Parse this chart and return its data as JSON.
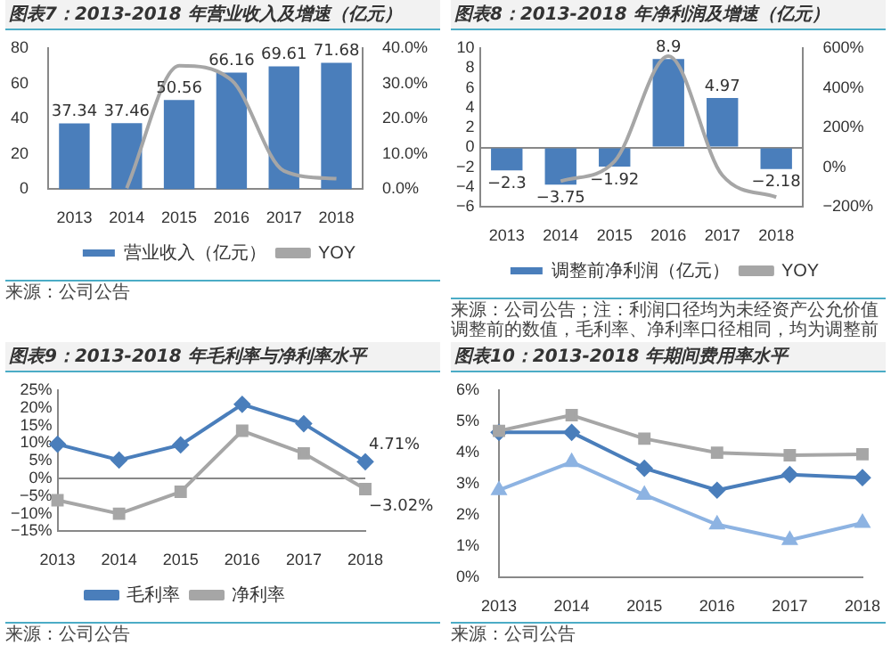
{
  "chart_data": [
    {
      "type": "bar",
      "title": "图表7：2013-2018 年营业收入及增速（亿元）",
      "annotations": [
        "来源：公司公告"
      ],
      "categories": [
        "2013",
        "2014",
        "2015",
        "2016",
        "2017",
        "2018"
      ],
      "legend": "bottom",
      "ylim": [
        0,
        80
      ],
      "yticks": [
        0,
        20,
        40,
        60,
        80
      ],
      "y2lim": [
        0,
        40
      ],
      "y2ticks": [
        {
          "value": 0,
          "label": "0.0%"
        },
        {
          "value": 10,
          "label": "10.0%"
        },
        {
          "value": 20,
          "label": "20.0%"
        },
        {
          "value": 30,
          "label": "30.0%"
        },
        {
          "value": 40,
          "label": "40.0%"
        }
      ],
      "series": [
        {
          "name": "营业收入（亿元）",
          "color": "#4a7ebb",
          "values": [
            37.34,
            37.46,
            50.56,
            66.16,
            69.61,
            71.68
          ],
          "value_labels": [
            "37.34",
            "37.46",
            "50.56",
            "66.16",
            "69.61",
            "71.68"
          ]
        },
        {
          "name": "YOY",
          "type": "line",
          "axis": "y2",
          "color": "#a6a6a6",
          "values": [
            null,
            0.3,
            35,
            30.9,
            5.2,
            3
          ]
        }
      ]
    },
    {
      "type": "bar",
      "title": "图表8：2013-2018 年净利润及增速（亿元）",
      "annotations": [
        "来源：公司公告；注：利润口径均为未经资产公允价值调整前的数值，毛利率、净利率口径相同，均为调整前"
      ],
      "categories": [
        "2013",
        "2014",
        "2015",
        "2016",
        "2017",
        "2018"
      ],
      "legend": "bottom",
      "ylim": [
        -6,
        10
      ],
      "yticks": [
        {
          "value": -6,
          "label": "−6"
        },
        {
          "value": -4,
          "label": "−4"
        },
        {
          "value": -2,
          "label": "−2"
        },
        0,
        2,
        4,
        6,
        8,
        10
      ],
      "y2lim": [
        -200,
        600
      ],
      "y2ticks": [
        {
          "value": -200,
          "label": "−200%"
        },
        {
          "value": 0,
          "label": "0%"
        },
        {
          "value": 200,
          "label": "200%"
        },
        {
          "value": 400,
          "label": "400%"
        },
        {
          "value": 600,
          "label": "600%"
        }
      ],
      "series": [
        {
          "name": "调整前净利润（亿元）",
          "color": "#4a7ebb",
          "values": [
            -2.3,
            -3.75,
            -1.92,
            8.9,
            4.97,
            -2.18
          ],
          "value_labels": [
            "−2.3",
            "−3.75",
            "−1.92",
            "8.9",
            "4.97",
            "−2.18"
          ]
        },
        {
          "name": "YOY",
          "type": "line",
          "axis": "y2",
          "color": "#a6a6a6",
          "values": [
            null,
            -70,
            30,
            560,
            -40,
            -150
          ]
        }
      ]
    },
    {
      "type": "line",
      "title": "图表9：2013-2018 年毛利率与净利率水平",
      "annotations": [
        "来源：公司公告"
      ],
      "categories": [
        "2013",
        "2014",
        "2015",
        "2016",
        "2017",
        "2018"
      ],
      "legend": "bottom",
      "ylim": [
        -15,
        25
      ],
      "yticks": [
        {
          "value": -15,
          "label": "−15%"
        },
        {
          "value": -10,
          "label": "−10%"
        },
        {
          "value": -5,
          "label": "−5%"
        },
        {
          "value": 0,
          "label": "0%"
        },
        {
          "value": 5,
          "label": "5%"
        },
        {
          "value": 10,
          "label": "10%"
        },
        {
          "value": 15,
          "label": "15%"
        },
        {
          "value": 20,
          "label": "20%"
        },
        {
          "value": 25,
          "label": "25%"
        }
      ],
      "series": [
        {
          "name": "毛利率",
          "color": "#4a7ebb",
          "marker": "diamond",
          "values": [
            9.7,
            5.2,
            9.5,
            21,
            15.5,
            4.71
          ],
          "value_labels": [
            null,
            null,
            null,
            null,
            null,
            "4.71%"
          ]
        },
        {
          "name": "净利率",
          "color": "#a6a6a6",
          "marker": "square",
          "values": [
            -6.2,
            -10,
            -3.8,
            13.5,
            7.1,
            -3.02
          ],
          "value_labels": [
            null,
            null,
            null,
            null,
            null,
            "−3.02%"
          ]
        }
      ]
    },
    {
      "type": "line",
      "title": "图表10：2013-2018 年期间费用率水平",
      "annotations": [
        "来源：公司公告"
      ],
      "categories": [
        "2013",
        "2014",
        "2015",
        "2016",
        "2017",
        "2018"
      ],
      "ylim": [
        0,
        6
      ],
      "yticks": [
        {
          "value": 0,
          "label": "0%"
        },
        {
          "value": 1,
          "label": "1%"
        },
        {
          "value": 2,
          "label": "2%"
        },
        {
          "value": 3,
          "label": "3%"
        },
        {
          "value": 4,
          "label": "4%"
        },
        {
          "value": 5,
          "label": "5%"
        },
        {
          "value": 6,
          "label": "6%"
        }
      ],
      "series": [
        {
          "color": "#a6a6a6",
          "marker": "square",
          "values": [
            4.7,
            5.2,
            4.45,
            4,
            3.92,
            3.95
          ]
        },
        {
          "color": "#8db3e2",
          "marker": "triangle",
          "values": [
            2.8,
            3.7,
            2.65,
            1.7,
            1.2,
            1.75
          ]
        },
        {
          "color": "#4a7ebb",
          "marker": "diamond",
          "values": [
            4.65,
            4.65,
            3.5,
            2.8,
            3.3,
            3.2
          ]
        }
      ]
    }
  ]
}
